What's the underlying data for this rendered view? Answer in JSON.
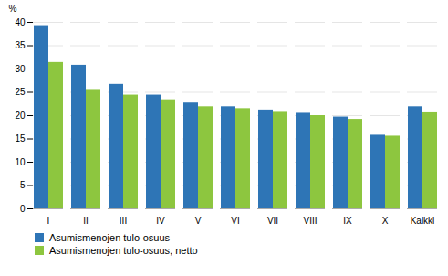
{
  "chart_data": {
    "type": "bar",
    "categories": [
      "I",
      "II",
      "III",
      "IV",
      "V",
      "VI",
      "VII",
      "VIII",
      "IX",
      "X",
      "Kaikki"
    ],
    "series": [
      {
        "name": "Asumismenojen tulo-osuus",
        "color": "#2e75b6",
        "values": [
          39.3,
          30.8,
          26.7,
          24.4,
          22.7,
          21.9,
          21.2,
          20.5,
          19.7,
          15.8,
          21.9
        ]
      },
      {
        "name": "Asumismenojen tulo-osuus, netto",
        "color": "#8dc63f",
        "values": [
          31.4,
          25.6,
          24.4,
          23.4,
          21.9,
          21.5,
          20.7,
          20.0,
          19.2,
          15.6,
          20.6
        ]
      }
    ],
    "ylabel": "%",
    "ylim": [
      0,
      40
    ],
    "yticks": [
      0,
      5,
      10,
      15,
      20,
      25,
      30,
      35,
      40
    ],
    "grid": true,
    "legend": "bottom"
  }
}
